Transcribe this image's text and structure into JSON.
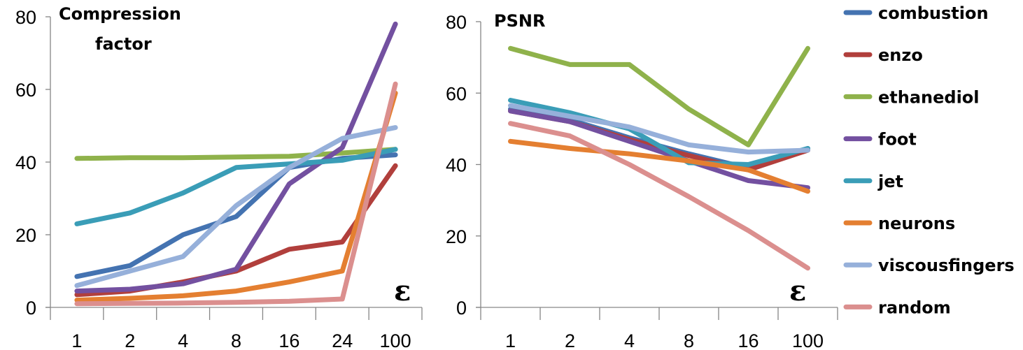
{
  "chart_data": [
    {
      "type": "line",
      "title_lines": [
        "Compression",
        "factor"
      ],
      "xlabel": "ε",
      "ylabel": "",
      "categories": [
        "1",
        "2",
        "4",
        "8",
        "16",
        "24",
        "100"
      ],
      "ylim": [
        0,
        80
      ],
      "yticks": [
        "0",
        "20",
        "40",
        "60",
        "80"
      ],
      "grid": false,
      "series": [
        {
          "name": "combustion",
          "values": [
            8.5,
            11.5,
            20,
            25,
            38.5,
            41,
            42
          ]
        },
        {
          "name": "enzo",
          "values": [
            3.5,
            4.5,
            7,
            10,
            16,
            18,
            39
          ]
        },
        {
          "name": "ethanediol",
          "values": [
            41,
            41.2,
            41.2,
            41.4,
            41.6,
            42.5,
            43.5
          ]
        },
        {
          "name": "foot",
          "values": [
            4.5,
            5,
            6.5,
            10.5,
            34,
            44,
            78
          ]
        },
        {
          "name": "jet",
          "values": [
            23,
            26,
            31.5,
            38.5,
            39.5,
            40.5,
            43.5
          ]
        },
        {
          "name": "neurons",
          "values": [
            2,
            2.5,
            3.2,
            4.5,
            7,
            10,
            59
          ]
        },
        {
          "name": "viscousfingers",
          "values": [
            6,
            10,
            14,
            28,
            38.5,
            46.5,
            49.5
          ]
        },
        {
          "name": "random",
          "values": [
            1,
            1.1,
            1.2,
            1.4,
            1.7,
            2.3,
            61.5
          ]
        }
      ]
    },
    {
      "type": "line",
      "title_lines": [
        "PSNR"
      ],
      "xlabel": "ε",
      "ylabel": "",
      "categories": [
        "1",
        "2",
        "4",
        "8",
        "16",
        "100"
      ],
      "ylim": [
        0,
        80
      ],
      "yticks": [
        "0",
        "20",
        "40",
        "60",
        "80"
      ],
      "grid": false,
      "series": [
        {
          "name": "combustion",
          "values": [
            55.5,
            52.5,
            47.5,
            43,
            39,
            44.5
          ]
        },
        {
          "name": "enzo",
          "values": [
            55,
            52,
            47,
            42.5,
            38.5,
            44
          ]
        },
        {
          "name": "ethanediol",
          "values": [
            72.5,
            68,
            68,
            55.5,
            45.5,
            72.5
          ]
        },
        {
          "name": "foot",
          "values": [
            55,
            52,
            46.5,
            41,
            35.5,
            33.5
          ]
        },
        {
          "name": "jet",
          "values": [
            58,
            54.5,
            50,
            40.5,
            40,
            44.5
          ]
        },
        {
          "name": "neurons",
          "values": [
            46.5,
            44.5,
            43,
            41,
            38.5,
            32.5
          ]
        },
        {
          "name": "viscousfingers",
          "values": [
            56.5,
            53.5,
            50.5,
            45.5,
            43.5,
            44
          ]
        },
        {
          "name": "random",
          "values": [
            51.5,
            48,
            40,
            31,
            21.5,
            11
          ]
        }
      ]
    }
  ],
  "legend": {
    "placement": "right",
    "entries": [
      {
        "name": "combustion",
        "color": "#4473B1"
      },
      {
        "name": "enzo",
        "color": "#B13F3C"
      },
      {
        "name": "ethanediol",
        "color": "#8FB24B"
      },
      {
        "name": "foot",
        "color": "#7350A0"
      },
      {
        "name": "jet",
        "color": "#3A9DB7"
      },
      {
        "name": "neurons",
        "color": "#E47F31"
      },
      {
        "name": "viscousfingers",
        "color": "#96B0DA"
      },
      {
        "name": "random",
        "color": "#DB8F8E"
      }
    ]
  }
}
